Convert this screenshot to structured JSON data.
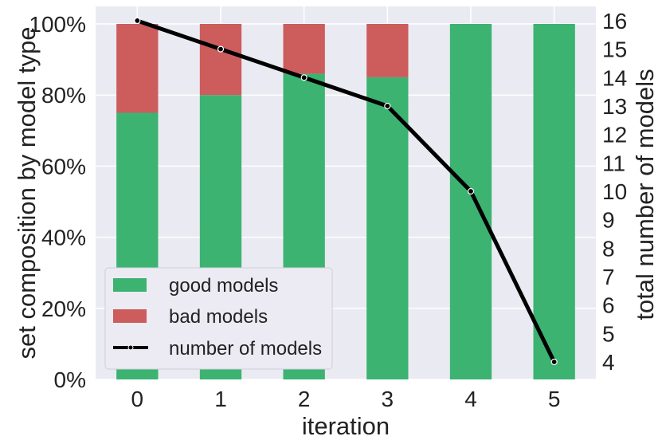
{
  "chart_data": {
    "type": "bar",
    "categories": [
      "0",
      "1",
      "2",
      "3",
      "4",
      "5"
    ],
    "series": [
      {
        "name": "good models",
        "values": [
          75,
          80,
          86,
          85,
          100,
          100
        ],
        "color": "#3cb371"
      },
      {
        "name": "bad models",
        "values": [
          25,
          20,
          14,
          15,
          0,
          0
        ],
        "color": "#cd5c5c"
      }
    ],
    "line_series": {
      "name": "number of models",
      "values": [
        16,
        15,
        14,
        13,
        10,
        4
      ],
      "color": "#000000"
    },
    "xlabel": "iteration",
    "ylabel": "set composition by model type",
    "y2label": "total number of models",
    "ylim": [
      0,
      100
    ],
    "y2lim": [
      3.6,
      16.4
    ],
    "yticks": [
      "0%",
      "20%",
      "40%",
      "60%",
      "80%",
      "100%"
    ],
    "y2ticks": [
      "4",
      "5",
      "6",
      "7",
      "8",
      "9",
      "10",
      "11",
      "12",
      "13",
      "14",
      "15",
      "16"
    ],
    "stacked": true,
    "grid": true,
    "legend_position": "lower-left",
    "background": "#eaeaf2"
  }
}
